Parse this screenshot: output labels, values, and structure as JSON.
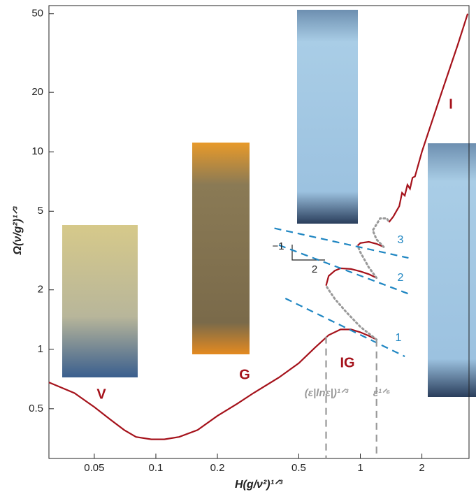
{
  "chart_data": {
    "type": "line",
    "log_x": true,
    "log_y": true,
    "x_label": "H(g/ν²)¹ᐟ³",
    "y_label": "Ω(ν/g²)¹ᐟ³",
    "xlim": [
      0.03,
      3.4
    ],
    "ylim": [
      0.28,
      55
    ],
    "xticks": [
      0.05,
      0.1,
      0.2,
      0.5,
      1,
      2
    ],
    "yticks": [
      0.5,
      1,
      2,
      5,
      10,
      20,
      50
    ],
    "series": [
      {
        "color": "#a5121b",
        "dash": "solid",
        "x": [
          0.03,
          0.04,
          0.05,
          0.06,
          0.07,
          0.08,
          0.095,
          0.11,
          0.13,
          0.16,
          0.2,
          0.25,
          0.3,
          0.4,
          0.5,
          0.6,
          0.7,
          0.8,
          0.9,
          1.0,
          1.1,
          1.2
        ],
        "values": [
          0.68,
          0.6,
          0.51,
          0.44,
          0.39,
          0.36,
          0.35,
          0.35,
          0.36,
          0.39,
          0.46,
          0.53,
          0.6,
          0.72,
          0.85,
          1.02,
          1.18,
          1.26,
          1.26,
          1.22,
          1.17,
          1.12
        ]
      },
      {
        "color": "#a5121b",
        "dash": "solid",
        "x": [
          0.68,
          0.7,
          0.75,
          0.8,
          0.9,
          1.0,
          1.1,
          1.2
        ],
        "values": [
          2.1,
          2.35,
          2.5,
          2.57,
          2.55,
          2.48,
          2.4,
          2.3
        ]
      },
      {
        "color": "#a5121b",
        "dash": "solid",
        "x": [
          0.97,
          1.0,
          1.1,
          1.2,
          1.3
        ],
        "values": [
          3.35,
          3.45,
          3.5,
          3.42,
          3.3
        ]
      },
      {
        "color": "#a5121b",
        "dash": "solid",
        "x": [
          1.38,
          1.45,
          1.5,
          1.55,
          1.6,
          1.65,
          1.7,
          1.75,
          1.8,
          1.85,
          2.0,
          2.5,
          3.0,
          3.35
        ],
        "values": [
          4.4,
          4.7,
          5.0,
          5.3,
          6.2,
          6.0,
          6.8,
          6.5,
          7.4,
          7.5,
          10,
          20,
          35,
          50
        ]
      },
      {
        "color": "#999999",
        "dash": "dotted",
        "x": [
          1.2,
          1.0,
          0.85,
          0.75,
          0.7,
          0.68
        ],
        "values": [
          1.12,
          1.3,
          1.55,
          1.8,
          2.0,
          2.1
        ]
      },
      {
        "color": "#999999",
        "dash": "dotted",
        "x": [
          1.2,
          1.1,
          1.0,
          0.97
        ],
        "values": [
          2.3,
          2.6,
          3.1,
          3.35
        ]
      },
      {
        "color": "#999999",
        "dash": "dotted",
        "x": [
          1.3,
          1.2,
          1.15,
          1.25,
          1.35,
          1.38
        ],
        "values": [
          3.3,
          3.6,
          4.0,
          4.6,
          4.6,
          4.4
        ]
      },
      {
        "color": "#1f86c2",
        "dash": "dashed",
        "x": [
          0.43,
          1.65
        ],
        "values": [
          1.81,
          0.92
        ]
      },
      {
        "color": "#1f86c2",
        "dash": "dashed",
        "x": [
          0.4,
          1.72
        ],
        "values": [
          3.37,
          1.91
        ]
      },
      {
        "color": "#1f86c2",
        "dash": "dashed",
        "x": [
          0.38,
          1.72
        ],
        "values": [
          4.1,
          2.9
        ]
      },
      {
        "color": "#999999",
        "dash": "dashed",
        "x": [
          0.68,
          0.68
        ],
        "values": [
          1.16,
          0.28
        ]
      },
      {
        "color": "#999999",
        "dash": "dashed",
        "x": [
          1.2,
          1.2
        ],
        "values": [
          1.12,
          0.28
        ]
      }
    ],
    "regime_labels": [
      "V",
      "G",
      "IG",
      "I"
    ],
    "branch_labels": [
      "1",
      "2",
      "3"
    ],
    "scale_labels": [
      "(ε|lnε|)¹ᐟ³",
      "ε¹ᐟ⁶"
    ],
    "slope_labels": [
      "−1",
      "2"
    ]
  }
}
